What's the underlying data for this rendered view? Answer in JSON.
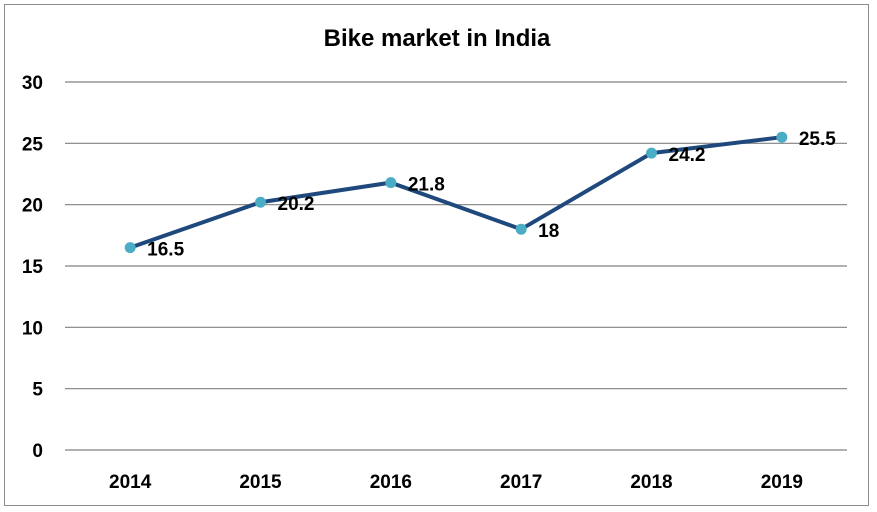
{
  "chart_data": {
    "type": "line",
    "title": "Bike market in India",
    "xlabel": "",
    "ylabel": "",
    "categories": [
      "2014",
      "2015",
      "2016",
      "2017",
      "2018",
      "2019"
    ],
    "series": [
      {
        "values": [
          16.5,
          20.2,
          21.8,
          18,
          24.2,
          25.5
        ]
      }
    ],
    "data_labels": [
      "16.5",
      "20.2",
      "21.8",
      "18",
      "24.2",
      "25.5"
    ],
    "yticks": [
      "0",
      "5",
      "10",
      "15",
      "20",
      "25",
      "30"
    ],
    "ylim": [
      0,
      30
    ],
    "grid": true,
    "legend": "none",
    "colors": {
      "line": "#1f497d",
      "marker": "#4bacc6",
      "grid": "#808080",
      "border": "#8c8c8c"
    }
  }
}
